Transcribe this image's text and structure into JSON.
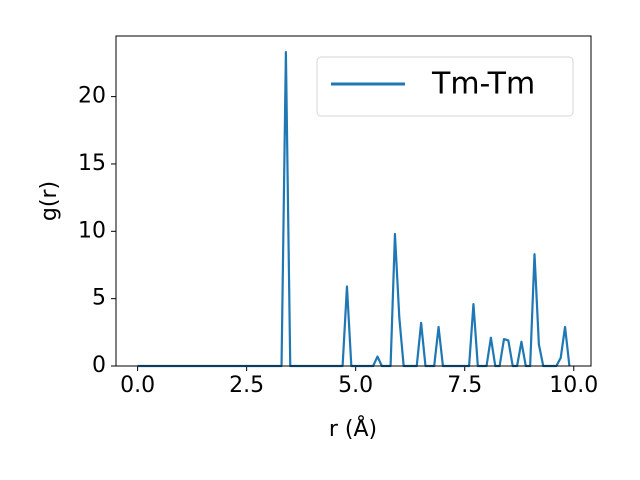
{
  "chart_data": {
    "type": "line",
    "x_label": "r (Å)",
    "y_label": "g(r)",
    "x": [
      0.0,
      0.1,
      0.2,
      0.3,
      0.4,
      0.5,
      0.6,
      0.7,
      0.8,
      0.9,
      1.0,
      1.1,
      1.2,
      1.3,
      1.4,
      1.5,
      1.6,
      1.7,
      1.8,
      1.9,
      2.0,
      2.1,
      2.2,
      2.3,
      2.4,
      2.5,
      2.6,
      2.7,
      2.8,
      2.9,
      3.0,
      3.1,
      3.2,
      3.3,
      3.4,
      3.5,
      3.6,
      3.7,
      3.8,
      3.9,
      4.0,
      4.1,
      4.2,
      4.3,
      4.4,
      4.5,
      4.6,
      4.7,
      4.8,
      4.9,
      5.0,
      5.1,
      5.2,
      5.3,
      5.4,
      5.5,
      5.6,
      5.7,
      5.8,
      5.9,
      6.0,
      6.1,
      6.2,
      6.3,
      6.4,
      6.5,
      6.6,
      6.7,
      6.8,
      6.9,
      7.0,
      7.1,
      7.2,
      7.3,
      7.4,
      7.5,
      7.6,
      7.7,
      7.8,
      7.9,
      8.0,
      8.1,
      8.2,
      8.3,
      8.4,
      8.5,
      8.6,
      8.7,
      8.8,
      8.9,
      9.0,
      9.1,
      9.2,
      9.3,
      9.4,
      9.5,
      9.6,
      9.7,
      9.8,
      9.9
    ],
    "series": [
      {
        "name": "Tm-Tm",
        "color": "#1f77b4",
        "values": [
          0,
          0,
          0,
          0,
          0,
          0,
          0,
          0,
          0,
          0,
          0,
          0,
          0,
          0,
          0,
          0,
          0,
          0,
          0,
          0,
          0,
          0,
          0,
          0,
          0,
          0,
          0,
          0,
          0,
          0,
          0,
          0,
          0,
          0,
          23.3,
          0,
          0,
          0,
          0,
          0,
          0,
          0,
          0,
          0,
          0,
          0,
          0,
          0,
          5.9,
          0,
          0,
          0,
          0,
          0,
          0,
          0.7,
          0,
          0,
          0,
          9.8,
          3.6,
          0,
          0,
          0,
          0,
          3.2,
          0,
          0,
          0,
          2.9,
          0,
          0,
          0,
          0,
          0,
          0,
          0,
          4.6,
          0,
          0,
          0,
          2.1,
          0,
          0,
          2.0,
          1.9,
          0,
          0,
          1.8,
          0,
          0,
          8.3,
          1.6,
          0,
          0,
          0,
          0,
          0.6,
          2.9,
          0
        ]
      }
    ],
    "xlim": [
      -0.495,
      10.395
    ],
    "ylim": [
      0,
      24.5
    ],
    "xticks": [
      {
        "value": 0,
        "label": "0.0"
      },
      {
        "value": 2.5,
        "label": "2.5"
      },
      {
        "value": 5,
        "label": "5.0"
      },
      {
        "value": 7.5,
        "label": "7.5"
      },
      {
        "value": 10,
        "label": "10.0"
      }
    ],
    "yticks": [
      0,
      5,
      10,
      15,
      20
    ],
    "grid": false,
    "legend_position": "upper-right"
  }
}
